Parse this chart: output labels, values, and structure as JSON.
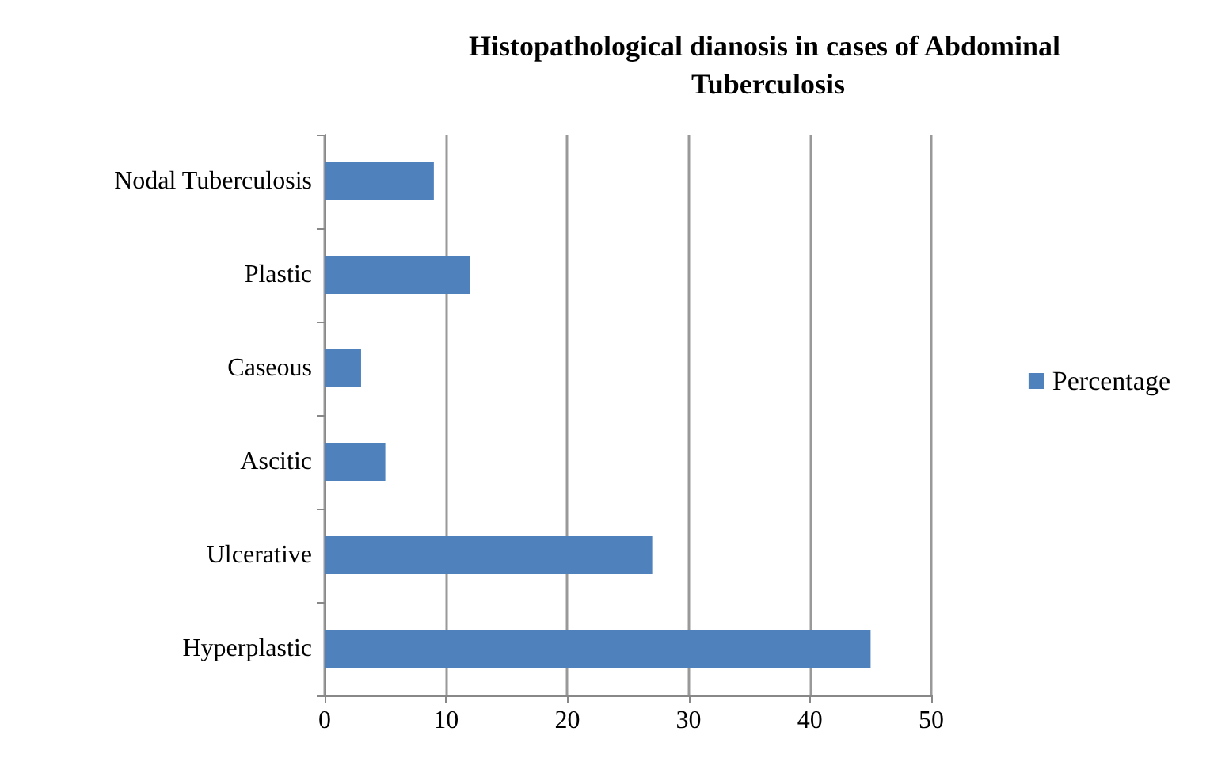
{
  "chart_data": {
    "type": "bar",
    "orientation": "horizontal",
    "title": "Histopathological dianosis in cases of Abdominal Tuberculosis",
    "categories": [
      "Nodal Tuberculosis",
      "Plastic",
      "Caseous",
      "Ascitic",
      "Ulcerative",
      "Hyperplastic"
    ],
    "series": [
      {
        "name": "Percentage",
        "color": "#4f81bd",
        "values": [
          9,
          12,
          3,
          5,
          27,
          45
        ]
      }
    ],
    "xlim": [
      0,
      50
    ],
    "xticks": [
      0,
      10,
      20,
      30,
      40,
      50
    ],
    "grid": "x",
    "legend": "right"
  }
}
